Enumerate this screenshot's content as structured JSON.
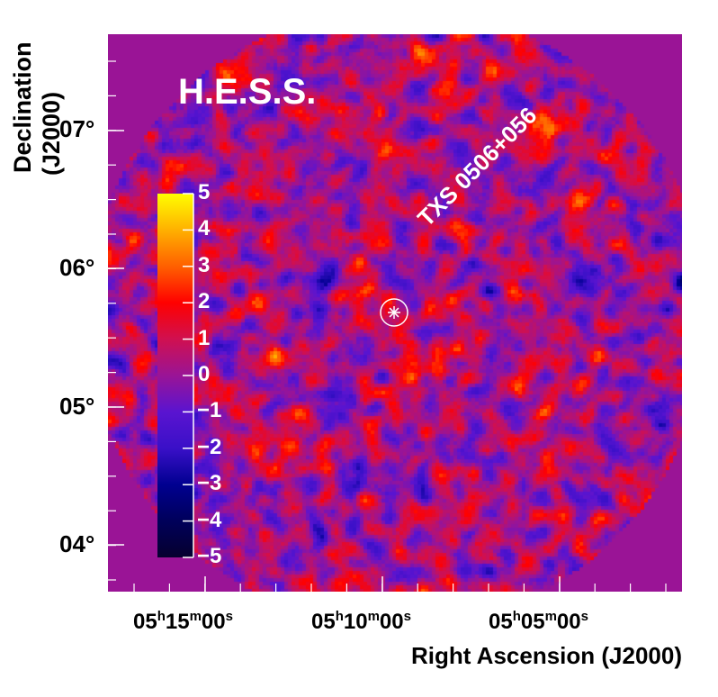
{
  "chart_data": {
    "type": "heatmap",
    "title": "H.E.S.S.",
    "xlabel": "Right Ascension (J2000)",
    "ylabel_line1": "Declination",
    "ylabel_line2": "(J2000)",
    "x_ticks": [
      {
        "h": "05",
        "m": "15",
        "s": "00"
      },
      {
        "h": "05",
        "m": "10",
        "s": "00"
      },
      {
        "h": "05",
        "m": "05",
        "s": "00"
      }
    ],
    "y_ticks": [
      "07°",
      "06°",
      "05°",
      "04°"
    ],
    "colorbar": {
      "range": [
        -5,
        5
      ],
      "ticks": [
        "5",
        "4",
        "3",
        "2",
        "1",
        "0",
        "−1",
        "−2",
        "−3",
        "−4",
        "−5"
      ],
      "colors": [
        "#06002e",
        "#00005a",
        "#000090",
        "#3a10c8",
        "#5a14d0",
        "#9a1496",
        "#d01050",
        "#ff0000",
        "#ff6000",
        "#ffb000",
        "#ffff00"
      ]
    },
    "annotation": {
      "label": "TXS 0506+056",
      "marker": "star-in-circle"
    },
    "background_value": 0
  }
}
